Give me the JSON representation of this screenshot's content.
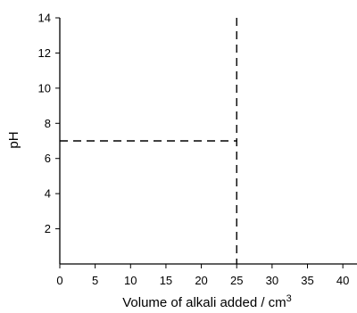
{
  "chart_data": {
    "type": "line",
    "title": "",
    "xlabel": "Volume of alkali added / cm",
    "xlabel_superscript": "3",
    "ylabel": "pH",
    "xlim": [
      0,
      42
    ],
    "ylim": [
      0,
      14
    ],
    "xticks": [
      "0",
      "5",
      "10",
      "15",
      "20",
      "25",
      "30",
      "35",
      "40"
    ],
    "xtick_values": [
      0,
      5,
      10,
      15,
      20,
      25,
      30,
      35,
      40
    ],
    "yticks": [
      "2",
      "4",
      "6",
      "8",
      "10",
      "12",
      "14"
    ],
    "ytick_values": [
      2,
      4,
      6,
      8,
      10,
      12,
      14
    ],
    "grid": false,
    "reference_lines": [
      {
        "orientation": "horizontal",
        "y": 7,
        "x_from": 0,
        "x_to": 25,
        "style": "dashed"
      },
      {
        "orientation": "vertical",
        "x": 25,
        "y_from": 0,
        "y_to": 14,
        "style": "dashed"
      }
    ],
    "colors": {
      "axis": "#000000",
      "line": "#000000"
    }
  }
}
